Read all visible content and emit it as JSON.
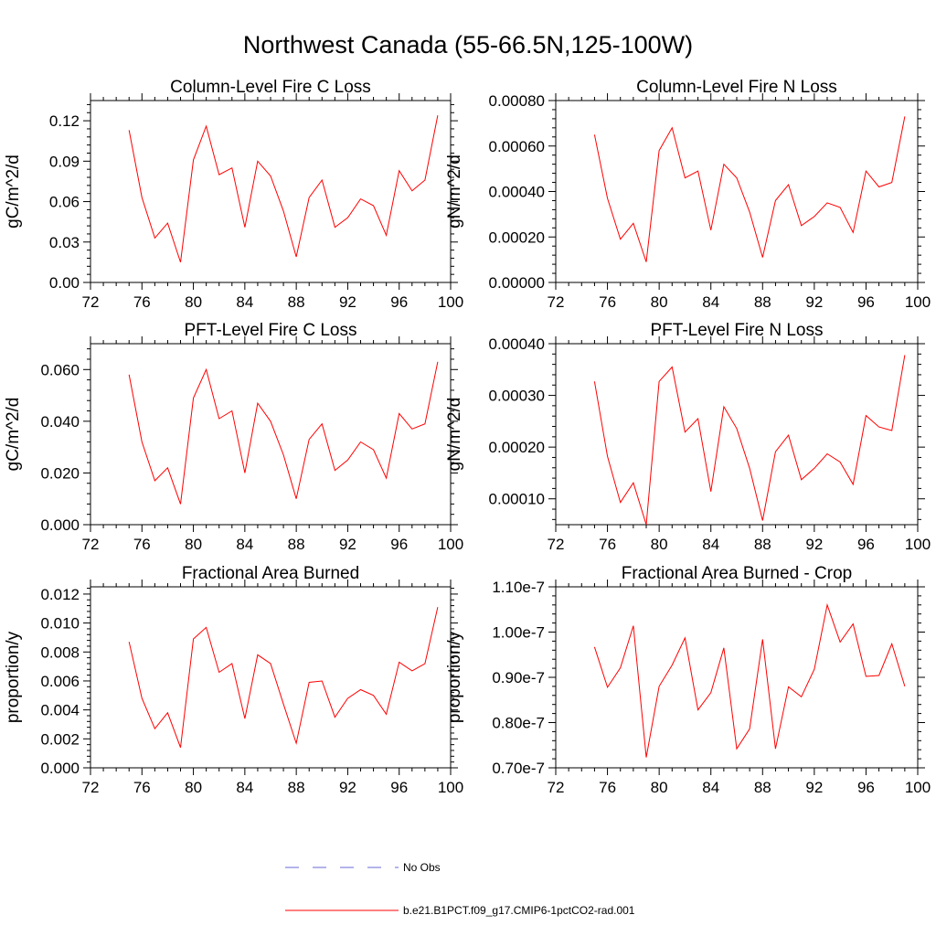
{
  "title": "Northwest Canada (55-66.5N,125-100W)",
  "line_color": "#ff0000",
  "obs_color": "#6a6ad8",
  "chart_data": [
    {
      "type": "line",
      "title": "Column-Level Fire C Loss",
      "ylabel": "gC/m^2/d",
      "xlim": [
        72,
        100
      ],
      "ylim": [
        0,
        0.135
      ],
      "xticks": [
        72,
        76,
        80,
        84,
        88,
        92,
        96,
        100
      ],
      "xtick_labels": [
        "72",
        "76",
        "80",
        "84",
        "88",
        "92",
        "96",
        "100"
      ],
      "yticks": [
        0,
        0.03,
        0.06,
        0.09,
        0.12
      ],
      "ytick_labels": [
        "0.00",
        "0.03",
        "0.06",
        "0.09",
        "0.12"
      ],
      "x": [
        75,
        76,
        77,
        78,
        79,
        80,
        81,
        82,
        83,
        84,
        85,
        86,
        87,
        88,
        89,
        90,
        91,
        92,
        93,
        94,
        95,
        96,
        97,
        98,
        99
      ],
      "series": [
        {
          "values": [
            0.113,
            0.063,
            0.033,
            0.044,
            0.015,
            0.091,
            0.116,
            0.08,
            0.085,
            0.041,
            0.09,
            0.079,
            0.053,
            0.019,
            0.063,
            0.076,
            0.041,
            0.048,
            0.062,
            0.057,
            0.035,
            0.083,
            0.068,
            0.076,
            0.124
          ]
        }
      ]
    },
    {
      "type": "line",
      "title": "Column-Level Fire N Loss",
      "ylabel": "gN/m^2/d",
      "xlim": [
        72,
        100
      ],
      "ylim": [
        0,
        0.0008
      ],
      "xticks": [
        72,
        76,
        80,
        84,
        88,
        92,
        96,
        100
      ],
      "xtick_labels": [
        "72",
        "76",
        "80",
        "84",
        "88",
        "92",
        "96",
        "100"
      ],
      "yticks": [
        0,
        0.0002,
        0.0004,
        0.0006,
        0.0008
      ],
      "ytick_labels": [
        "0.00000",
        "0.00020",
        "0.00040",
        "0.00060",
        "0.00080"
      ],
      "x": [
        75,
        76,
        77,
        78,
        79,
        80,
        81,
        82,
        83,
        84,
        85,
        86,
        87,
        88,
        89,
        90,
        91,
        92,
        93,
        94,
        95,
        96,
        97,
        98,
        99
      ],
      "series": [
        {
          "values": [
            0.00065,
            0.00037,
            0.00019,
            0.00026,
            9e-05,
            0.00058,
            0.00068,
            0.00046,
            0.00049,
            0.00023,
            0.00052,
            0.00046,
            0.00031,
            0.00011,
            0.00036,
            0.00043,
            0.00025,
            0.00029,
            0.00035,
            0.00033,
            0.00022,
            0.00049,
            0.00042,
            0.00044,
            0.00073
          ]
        }
      ]
    },
    {
      "type": "line",
      "title": "PFT-Level Fire C Loss",
      "ylabel": "gC/m^2/d",
      "xlim": [
        72,
        100
      ],
      "ylim": [
        0,
        0.07
      ],
      "xticks": [
        72,
        76,
        80,
        84,
        88,
        92,
        96,
        100
      ],
      "xtick_labels": [
        "72",
        "76",
        "80",
        "84",
        "88",
        "92",
        "96",
        "100"
      ],
      "yticks": [
        0,
        0.02,
        0.04,
        0.06
      ],
      "ytick_labels": [
        "0.000",
        "0.020",
        "0.040",
        "0.060"
      ],
      "x": [
        75,
        76,
        77,
        78,
        79,
        80,
        81,
        82,
        83,
        84,
        85,
        86,
        87,
        88,
        89,
        90,
        91,
        92,
        93,
        94,
        95,
        96,
        97,
        98,
        99
      ],
      "series": [
        {
          "values": [
            0.058,
            0.032,
            0.017,
            0.022,
            0.008,
            0.049,
            0.06,
            0.041,
            0.044,
            0.02,
            0.047,
            0.04,
            0.027,
            0.01,
            0.033,
            0.039,
            0.021,
            0.025,
            0.032,
            0.029,
            0.018,
            0.043,
            0.037,
            0.039,
            0.063
          ]
        }
      ]
    },
    {
      "type": "line",
      "title": "PFT-Level Fire N Loss",
      "ylabel": "gN/m^2/d",
      "xlim": [
        72,
        100
      ],
      "ylim": [
        5e-05,
        0.0004
      ],
      "xticks": [
        72,
        76,
        80,
        84,
        88,
        92,
        96,
        100
      ],
      "xtick_labels": [
        "72",
        "76",
        "80",
        "84",
        "88",
        "92",
        "96",
        "100"
      ],
      "yticks": [
        0.0001,
        0.0002,
        0.0003,
        0.0004
      ],
      "ytick_labels": [
        "0.00010",
        "0.00020",
        "0.00030",
        "0.00040"
      ],
      "x": [
        75,
        76,
        77,
        78,
        79,
        80,
        81,
        82,
        83,
        84,
        85,
        86,
        87,
        88,
        89,
        90,
        91,
        92,
        93,
        94,
        95,
        96,
        97,
        98,
        99
      ],
      "series": [
        {
          "values": [
            0.000327,
            0.000182,
            9.3e-05,
            0.000131,
            5e-05,
            0.000327,
            0.000355,
            0.000229,
            0.000255,
            0.000114,
            0.000278,
            0.000236,
            0.000159,
            5.8e-05,
            0.000191,
            0.000223,
            0.000137,
            0.000159,
            0.000187,
            0.000171,
            0.000128,
            0.000261,
            0.000239,
            0.000232,
            0.000378
          ]
        }
      ]
    },
    {
      "type": "line",
      "title": "Fractional Area Burned",
      "ylabel": "proportion/y",
      "xlim": [
        72,
        100
      ],
      "ylim": [
        0,
        0.0125
      ],
      "xticks": [
        72,
        76,
        80,
        84,
        88,
        92,
        96,
        100
      ],
      "xtick_labels": [
        "72",
        "76",
        "80",
        "84",
        "88",
        "92",
        "96",
        "100"
      ],
      "yticks": [
        0,
        0.002,
        0.004,
        0.006,
        0.008,
        0.01,
        0.012
      ],
      "ytick_labels": [
        "0.000",
        "0.002",
        "0.004",
        "0.006",
        "0.008",
        "0.010",
        "0.012"
      ],
      "x": [
        75,
        76,
        77,
        78,
        79,
        80,
        81,
        82,
        83,
        84,
        85,
        86,
        87,
        88,
        89,
        90,
        91,
        92,
        93,
        94,
        95,
        96,
        97,
        98,
        99
      ],
      "series": [
        {
          "values": [
            0.0087,
            0.0048,
            0.0027,
            0.0038,
            0.0014,
            0.0089,
            0.0097,
            0.0066,
            0.0072,
            0.0034,
            0.0078,
            0.0072,
            0.0044,
            0.0017,
            0.0059,
            0.006,
            0.0035,
            0.0048,
            0.0054,
            0.005,
            0.0037,
            0.0073,
            0.0067,
            0.0072,
            0.0111
          ]
        }
      ]
    },
    {
      "type": "line",
      "title": "Fractional Area Burned - Crop",
      "ylabel": "proportion/y",
      "xlim": [
        72,
        100
      ],
      "ylim": [
        7e-08,
        1.1e-07
      ],
      "xticks": [
        72,
        76,
        80,
        84,
        88,
        92,
        96,
        100
      ],
      "xtick_labels": [
        "72",
        "76",
        "80",
        "84",
        "88",
        "92",
        "96",
        "100"
      ],
      "yticks": [
        7e-08,
        8e-08,
        9e-08,
        1e-07,
        1.1e-07
      ],
      "ytick_labels": [
        "0.70e-7",
        "0.80e-7",
        "0.90e-7",
        "1.00e-7",
        "1.10e-7"
      ],
      "x": [
        75,
        76,
        77,
        78,
        79,
        80,
        81,
        82,
        83,
        84,
        85,
        86,
        87,
        88,
        89,
        90,
        91,
        92,
        93,
        94,
        95,
        96,
        97,
        98,
        99
      ],
      "series": [
        {
          "values": [
            9.67e-08,
            8.78e-08,
            9.21e-08,
            1.014e-07,
            7.23e-08,
            8.8e-08,
            9.27e-08,
            9.87e-08,
            8.28e-08,
            8.66e-08,
            9.65e-08,
            7.42e-08,
            7.86e-08,
            9.84e-08,
            7.42e-08,
            8.79e-08,
            8.57e-08,
            9.18e-08,
            1.06e-07,
            9.78e-08,
            1.018e-07,
            9.02e-08,
            9.04e-08,
            9.74e-08,
            8.8e-08
          ]
        }
      ]
    }
  ],
  "legend": {
    "entries": [
      {
        "label": "No Obs",
        "style": "dashed",
        "color": "#6a6ad8"
      },
      {
        "label": "b.e21.B1PCT.f09_g17.CMIP6-1pctCO2-rad.001",
        "style": "solid",
        "color": "#ff0000"
      }
    ]
  }
}
